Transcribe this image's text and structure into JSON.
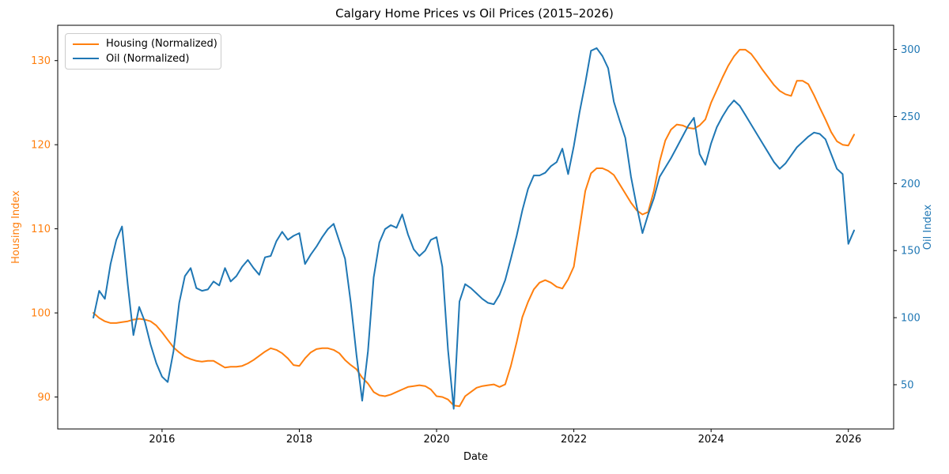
{
  "title": "Calgary Home Prices vs Oil Prices (2015–2026)",
  "legend": {
    "items": [
      {
        "label": "Housing (Normalized)",
        "color": "#ff7f0e"
      },
      {
        "label": "Oil (Normalized)",
        "color": "#1f77b4"
      }
    ]
  },
  "chart_data": {
    "type": "line",
    "title": "Calgary Home Prices vs Oil Prices (2015–2026)",
    "xlabel": "Date",
    "ylabel_left": "Housing Index",
    "ylabel_right": "Oil Index",
    "grid": false,
    "legend_position": "upper left",
    "x_start_year": 2015.0,
    "x_step": "monthly",
    "xlim": [
      2014.48,
      2026.66
    ],
    "x_ticks": [
      2016,
      2018,
      2020,
      2022,
      2024,
      2026
    ],
    "left_axis": {
      "label": "Housing Index",
      "color": "#ff7f0e",
      "ticks": [
        90,
        100,
        110,
        120,
        130
      ],
      "ylim": [
        86.2,
        134.2
      ]
    },
    "right_axis": {
      "label": "Oil Index",
      "color": "#1f77b4",
      "ticks": [
        50,
        100,
        150,
        200,
        250,
        300
      ],
      "ylim": [
        17,
        318
      ]
    },
    "series": [
      {
        "name": "Housing (Normalized)",
        "axis": "left",
        "color": "#ff7f0e",
        "values": [
          100.0,
          99.4,
          99.0,
          98.8,
          98.8,
          98.9,
          99.0,
          99.2,
          99.3,
          99.2,
          99.0,
          98.5,
          97.7,
          96.8,
          95.9,
          95.3,
          94.8,
          94.5,
          94.3,
          94.2,
          94.3,
          94.3,
          93.9,
          93.5,
          93.6,
          93.6,
          93.7,
          94.0,
          94.4,
          94.9,
          95.4,
          95.8,
          95.6,
          95.2,
          94.6,
          93.8,
          93.7,
          94.6,
          95.3,
          95.7,
          95.8,
          95.8,
          95.6,
          95.2,
          94.4,
          93.8,
          93.3,
          92.3,
          91.6,
          90.6,
          90.2,
          90.1,
          90.3,
          90.6,
          90.9,
          91.2,
          91.3,
          91.4,
          91.3,
          90.9,
          90.1,
          90.0,
          89.7,
          89.0,
          88.9,
          90.1,
          90.6,
          91.1,
          91.3,
          91.4,
          91.5,
          91.2,
          91.5,
          93.7,
          96.5,
          99.5,
          101.3,
          102.8,
          103.6,
          103.9,
          103.6,
          103.1,
          102.9,
          104.0,
          105.5,
          110.0,
          114.5,
          116.6,
          117.2,
          117.2,
          116.9,
          116.4,
          115.3,
          114.2,
          113.1,
          112.2,
          111.7,
          112.0,
          114.5,
          118.0,
          120.5,
          121.8,
          122.4,
          122.3,
          122.0,
          121.9,
          122.3,
          123.0,
          125.0,
          126.5,
          128.0,
          129.4,
          130.5,
          131.3,
          131.3,
          130.8,
          129.9,
          128.9,
          128.0,
          127.1,
          126.4,
          126.0,
          125.8,
          127.6,
          127.6,
          127.2,
          125.9,
          124.4,
          123.0,
          121.5,
          120.4,
          120.0,
          119.9,
          121.2
        ]
      },
      {
        "name": "Oil (Normalized)",
        "axis": "right",
        "color": "#1f77b4",
        "values": [
          100,
          120,
          114,
          140,
          158,
          168,
          125,
          87,
          108,
          97,
          80,
          66,
          56,
          52,
          75,
          111,
          131,
          137,
          122,
          120,
          121,
          127,
          124,
          137,
          127,
          131,
          138,
          143,
          137,
          132,
          145,
          146,
          157,
          164,
          158,
          161,
          163,
          140,
          147,
          153,
          160,
          166,
          170,
          157,
          144,
          111,
          72,
          38,
          75,
          130,
          156,
          166,
          169,
          167,
          177,
          162,
          151,
          146,
          150,
          158,
          160,
          138,
          76,
          32,
          112,
          125,
          122,
          118,
          114,
          111,
          110,
          117,
          128,
          144,
          161,
          180,
          196,
          206,
          206,
          208,
          213,
          216,
          226,
          207,
          228,
          253,
          275,
          299,
          301,
          295,
          286,
          261,
          247,
          234,
          205,
          183,
          163,
          177,
          189,
          205,
          212,
          219,
          227,
          235,
          243,
          249,
          222,
          214,
          230,
          242,
          250,
          257,
          262,
          258,
          251,
          244,
          237,
          230,
          223,
          216,
          211,
          215,
          221,
          227,
          231,
          235,
          238,
          237,
          233,
          222,
          211,
          207,
          155,
          165
        ]
      }
    ]
  }
}
